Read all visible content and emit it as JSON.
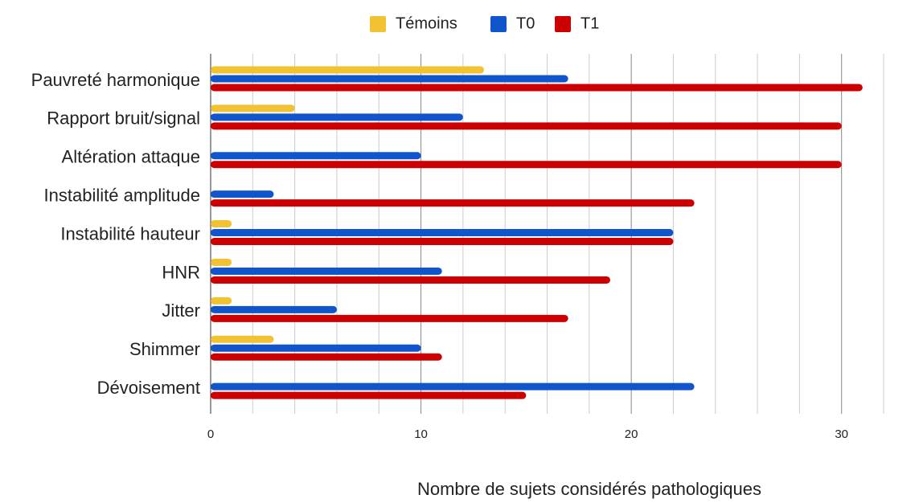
{
  "chart_data": {
    "type": "hbar",
    "categories": [
      "Pauvreté harmonique",
      "Rapport bruit/signal",
      "Altération attaque",
      "Instabilité amplitude",
      "Instabilité hauteur",
      "HNR",
      "Jitter",
      "Shimmer",
      "Dévoisement"
    ],
    "series": [
      {
        "name": "Témoins",
        "color": "#f1c232",
        "values": [
          13,
          4,
          0,
          0,
          1,
          1,
          1,
          3,
          0
        ]
      },
      {
        "name": "T0",
        "color": "#1155cc",
        "values": [
          17,
          12,
          10,
          3,
          22,
          11,
          6,
          10,
          23
        ]
      },
      {
        "name": "T1",
        "color": "#cc0000",
        "values": [
          31,
          30,
          30,
          23,
          22,
          19,
          17,
          11,
          15
        ]
      }
    ],
    "xlabel": "Nombre de sujets considérés pathologiques",
    "xlim": [
      0,
      32
    ],
    "xticks": [
      0,
      10,
      20,
      30
    ],
    "minor_xticks": [
      2,
      4,
      6,
      8,
      12,
      14,
      16,
      18,
      22,
      24,
      26,
      28,
      32
    ],
    "grid": true,
    "legend": "top"
  }
}
